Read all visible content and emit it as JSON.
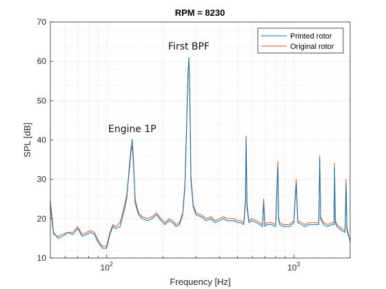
{
  "chart_data": {
    "type": "line",
    "title": "RPM = 8230",
    "xlabel": "Frequency [Hz]",
    "ylabel": "SPL [dB]",
    "xscale": "log",
    "xlim": [
      50,
      2000
    ],
    "ylim": [
      10,
      70
    ],
    "xticks": [
      {
        "value": 100,
        "base": "10",
        "exp": "2"
      },
      {
        "value": 1000,
        "base": "10",
        "exp": "3"
      }
    ],
    "yticks": [
      10,
      20,
      30,
      40,
      50,
      60,
      70
    ],
    "grid": "on (major and minor, dotted)",
    "legend": "top-right",
    "annotations": [
      {
        "text": "Engine 1P",
        "x": 137,
        "y": 42
      },
      {
        "text": "First BPF",
        "x": 275,
        "y": 63
      }
    ],
    "colors": {
      "printed": "#0072BD",
      "original": "#D95319"
    },
    "series": [
      {
        "name": "Printed rotor",
        "x": [
          50,
          52,
          55,
          58,
          62,
          66,
          70,
          74,
          78,
          82,
          86,
          90,
          95,
          100,
          104,
          108,
          112,
          118,
          124,
          128,
          132,
          135,
          137,
          139,
          142,
          148,
          155,
          165,
          175,
          185,
          195,
          205,
          215,
          225,
          235,
          245,
          255,
          262,
          268,
          272,
          275,
          278,
          282,
          290,
          300,
          320,
          340,
          360,
          380,
          400,
          420,
          440,
          460,
          480,
          500,
          520,
          540,
          552,
          556,
          562,
          575,
          600,
          630,
          660,
          680,
          690,
          700,
          720,
          760,
          800,
          822,
          828,
          840,
          880,
          950,
          1000,
          1030,
          1050,
          1100,
          1150,
          1200,
          1250,
          1300,
          1360,
          1375,
          1390,
          1440,
          1520,
          1600,
          1640,
          1650,
          1665,
          1700,
          1800,
          1880,
          1900,
          1920,
          1950,
          2000
        ],
        "values": [
          24.5,
          16.5,
          15,
          15.5,
          16.5,
          16,
          17.5,
          15.5,
          16,
          16.5,
          16,
          14,
          12.5,
          12.5,
          16,
          18,
          17.5,
          18,
          22,
          25,
          33,
          38,
          40.2,
          35,
          24,
          21,
          20,
          19.5,
          20,
          21,
          19.5,
          18.5,
          19.5,
          19,
          18,
          18.5,
          21,
          28,
          45,
          56,
          61,
          52,
          30,
          23,
          21,
          20.5,
          19.5,
          20,
          19,
          19.5,
          20,
          19.5,
          19.5,
          19.5,
          19,
          19,
          18.5,
          24,
          40.5,
          23,
          19,
          19.5,
          19,
          18.5,
          18,
          24,
          18,
          18.5,
          18.5,
          18,
          33.5,
          20,
          18.5,
          18,
          18,
          19,
          29,
          19,
          18.5,
          18,
          18.5,
          18.5,
          18.5,
          18.5,
          35.5,
          20,
          18.5,
          18,
          18.5,
          18.5,
          33,
          19,
          18,
          17,
          16.5,
          29,
          17.5,
          16,
          14.5
        ]
      },
      {
        "name": "Original rotor",
        "x": [
          50,
          52,
          55,
          58,
          62,
          66,
          70,
          74,
          78,
          82,
          86,
          90,
          95,
          100,
          104,
          108,
          112,
          118,
          124,
          128,
          132,
          135,
          137,
          139,
          142,
          148,
          155,
          165,
          175,
          185,
          195,
          205,
          215,
          225,
          235,
          245,
          255,
          262,
          268,
          272,
          275,
          278,
          282,
          290,
          300,
          320,
          340,
          360,
          380,
          400,
          420,
          440,
          460,
          480,
          500,
          520,
          540,
          552,
          556,
          562,
          575,
          600,
          630,
          660,
          680,
          690,
          700,
          720,
          760,
          800,
          822,
          828,
          840,
          880,
          950,
          1000,
          1030,
          1050,
          1100,
          1150,
          1200,
          1250,
          1300,
          1360,
          1375,
          1390,
          1440,
          1520,
          1600,
          1640,
          1650,
          1665,
          1700,
          1800,
          1880,
          1900,
          1920,
          1950,
          2000
        ],
        "values": [
          23,
          16,
          15.5,
          16,
          16.5,
          16.5,
          18,
          16,
          16.5,
          17,
          16.5,
          14.5,
          13,
          13,
          16.5,
          18.5,
          18,
          19,
          23,
          26,
          32,
          37,
          38.5,
          34,
          25,
          21.5,
          20.5,
          20,
          20.5,
          21.5,
          20,
          19,
          20,
          19.5,
          18.5,
          19,
          21.5,
          29,
          46,
          57,
          60.5,
          53,
          31,
          23.5,
          21.5,
          21,
          20,
          20.5,
          19.5,
          20,
          20.5,
          20,
          20,
          20,
          19.5,
          19.5,
          19,
          25,
          41,
          24,
          19.5,
          20,
          19.5,
          19,
          18.5,
          25,
          18.5,
          19,
          19,
          18.5,
          34.5,
          20.5,
          19,
          18.5,
          18.5,
          19.5,
          30,
          19.5,
          19,
          18.5,
          19,
          19,
          19,
          19,
          36,
          20.5,
          19,
          18.5,
          19,
          19,
          34,
          19.5,
          18.5,
          17.5,
          17,
          30,
          18,
          16.5,
          14
        ]
      }
    ]
  }
}
